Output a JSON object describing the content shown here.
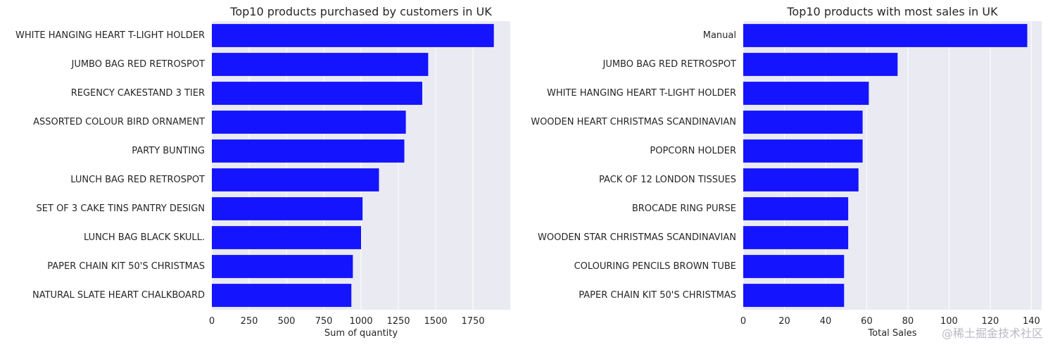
{
  "colors": {
    "bar": "#1414ff",
    "plot_background": "#eaeaf2",
    "grid": "#ffffff",
    "text": "#262626"
  },
  "watermark": "@稀土掘金技术社区",
  "chart_data": [
    {
      "type": "bar",
      "orientation": "horizontal",
      "title": "Top10 products purchased by customers in UK",
      "xlabel": "Sum of quantity",
      "ylabel": "",
      "xlim": [
        0,
        2000
      ],
      "xticks": [
        0,
        250,
        500,
        750,
        1000,
        1250,
        1500,
        1750
      ],
      "grid": true,
      "categories": [
        "WHITE HANGING HEART T-LIGHT HOLDER",
        "JUMBO BAG RED RETROSPOT",
        "REGENCY CAKESTAND 3 TIER",
        "ASSORTED COLOUR BIRD ORNAMENT",
        "PARTY BUNTING",
        "LUNCH BAG RED RETROSPOT",
        "SET OF 3 CAKE TINS PANTRY DESIGN",
        "LUNCH BAG  BLACK SKULL.",
        "PAPER CHAIN KIT 50'S CHRISTMAS",
        "NATURAL SLATE HEART CHALKBOARD"
      ],
      "values": [
        1890,
        1450,
        1410,
        1300,
        1290,
        1120,
        1010,
        1000,
        945,
        935
      ]
    },
    {
      "type": "bar",
      "orientation": "horizontal",
      "title": "Top10 products with most sales in UK",
      "xlabel": "Total Sales",
      "ylabel": "",
      "xlim": [
        0,
        145
      ],
      "xticks": [
        0,
        20,
        40,
        60,
        80,
        100,
        120,
        140
      ],
      "grid": true,
      "categories": [
        "Manual",
        "JUMBO BAG RED RETROSPOT",
        "WHITE HANGING HEART T-LIGHT HOLDER",
        "WOODEN HEART CHRISTMAS SCANDINAVIAN",
        "POPCORN HOLDER",
        "PACK OF 12 LONDON TISSUES",
        "BROCADE RING PURSE",
        "WOODEN STAR CHRISTMAS SCANDINAVIAN",
        "COLOURING PENCILS BROWN TUBE",
        "PAPER CHAIN KIT 50'S CHRISTMAS"
      ],
      "values": [
        138,
        75,
        61,
        58,
        58,
        56,
        51,
        51,
        49,
        49
      ]
    }
  ]
}
